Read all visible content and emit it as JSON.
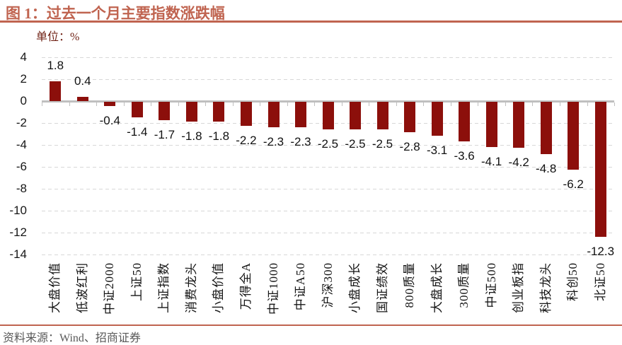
{
  "figure": {
    "title": "图 1：过去一个月主要指数涨跌幅",
    "unit_label": "单位：%",
    "source": "资料来源：Wind、招商证券"
  },
  "colors": {
    "accent_red": "#C06450",
    "bar_fill": "#8C0F0B",
    "grid_line": "#D7D7D7",
    "axis_line": "#BFBFBF",
    "unit_text": "#6E1F12",
    "source_text": "#595959",
    "label_text": "#111111"
  },
  "chart_data": {
    "type": "bar",
    "title": "过去一个月主要指数涨跌幅",
    "unit": "%",
    "categories": [
      "大盘价值",
      "低波红利",
      "中证2000",
      "上证50",
      "上证指数",
      "消费龙头",
      "小盘价值",
      "万得全A",
      "中证1000",
      "中证A50",
      "沪深300",
      "小盘成长",
      "国证绩效",
      "800质量",
      "大盘成长",
      "300质量",
      "中证500",
      "创业板指",
      "科技龙头",
      "科创50",
      "北证50"
    ],
    "values": [
      1.8,
      0.4,
      -0.4,
      -1.4,
      -1.7,
      -1.8,
      -1.8,
      -2.2,
      -2.3,
      -2.3,
      -2.5,
      -2.5,
      -2.5,
      -2.8,
      -3.1,
      -3.6,
      -4.1,
      -4.2,
      -4.8,
      -6.2,
      -12.3
    ],
    "ylim": [
      -14,
      4
    ],
    "ytick_step": 2,
    "yticks": [
      4,
      2,
      0,
      -2,
      -4,
      -6,
      -8,
      -10,
      -12,
      -14
    ],
    "grid": "dashed-horizontal",
    "legend": "none",
    "value_labels": "outside-end",
    "x_labels_rotation_deg": -90
  }
}
